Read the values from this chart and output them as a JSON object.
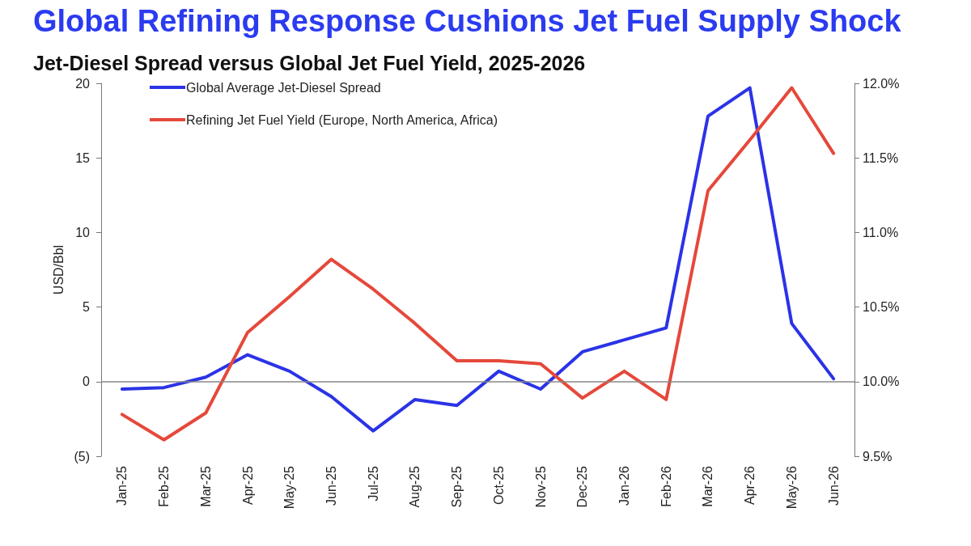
{
  "chart_data": {
    "type": "line",
    "title": "Global Refining Response Cushions Jet Fuel Supply Shock",
    "subtitle": "Jet-Diesel Spread versus Global Jet Fuel Yield, 2025-2026",
    "ylabel": "USD/Bbl",
    "categories": [
      "Jan-25",
      "Feb-25",
      "Mar-25",
      "Apr-25",
      "May-25",
      "Jun-25",
      "Jul-25",
      "Aug-25",
      "Sep-25",
      "Oct-25",
      "Nov-25",
      "Dec-25",
      "Jan-26",
      "Feb-26",
      "Mar-26",
      "Apr-26",
      "May-26",
      "Jun-26"
    ],
    "series": [
      {
        "name": "Global Average Jet-Diesel Spread",
        "color": "#2b33e6",
        "values": [
          -0.5,
          -0.4,
          0.3,
          1.8,
          0.7,
          -1.0,
          -3.3,
          -1.2,
          -1.6,
          0.7,
          -0.5,
          2.0,
          2.8,
          3.6,
          17.8,
          19.7,
          3.9,
          0.2
        ]
      },
      {
        "name": "Refining Jet Fuel Yield (Europe, North America, Africa)",
        "color": "#e5483a",
        "axis": "y2",
        "values": [
          9.78,
          9.61,
          9.79,
          10.33,
          10.57,
          10.82,
          10.62,
          10.39,
          10.14,
          10.14,
          10.12,
          9.89,
          10.07,
          9.88,
          11.28,
          11.62,
          11.97,
          11.53
        ]
      }
    ],
    "ylim": [
      -5,
      20
    ],
    "yticks": [
      {
        "value": -5,
        "label": "(5)"
      },
      0,
      5,
      10,
      15,
      20
    ],
    "y2lim": [
      9.5,
      12
    ],
    "y2ticks": [
      {
        "value": 9.5,
        "label": "9.5%"
      },
      {
        "value": 10,
        "label": "10.0%"
      },
      {
        "value": 10.5,
        "label": "10.5%"
      },
      {
        "value": 11,
        "label": "11.0%"
      },
      {
        "value": 11.5,
        "label": "11.5%"
      },
      {
        "value": 12,
        "label": "12.0%"
      }
    ],
    "ref_lines": [
      {
        "axis": "y",
        "value": 0,
        "color": "#888888",
        "line_style": "solid"
      }
    ],
    "grid": false,
    "legend": "top left",
    "marker": "none",
    "line_style": "solid"
  }
}
